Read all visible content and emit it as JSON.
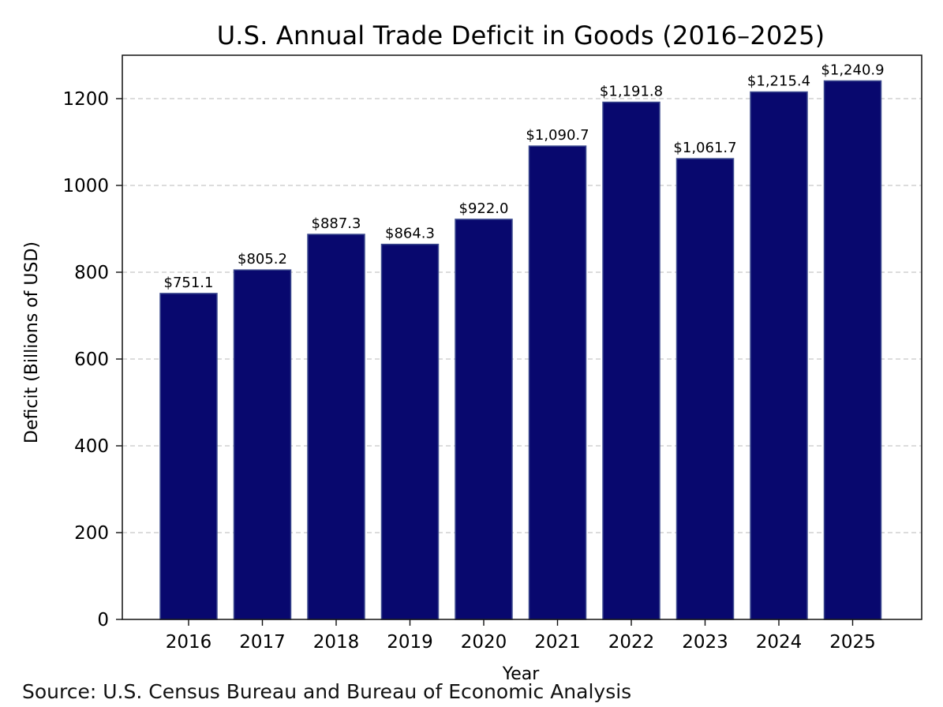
{
  "chart_data": {
    "type": "bar",
    "title": "U.S. Annual Trade Deficit in Goods (2016–2025)",
    "xlabel": "Year",
    "ylabel": "Deficit (Billions of USD)",
    "categories": [
      "2016",
      "2017",
      "2018",
      "2019",
      "2020",
      "2021",
      "2022",
      "2023",
      "2024",
      "2025"
    ],
    "values": [
      751.1,
      805.2,
      887.3,
      864.3,
      922.0,
      1090.7,
      1191.8,
      1061.7,
      1215.4,
      1240.9
    ],
    "data_labels": [
      "$751.1",
      "$805.2",
      "$887.3",
      "$864.3",
      "$922.0",
      "$1,090.7",
      "$1,191.8",
      "$1,061.7",
      "$1,215.4",
      "$1,240.9"
    ],
    "yticks": [
      0,
      200,
      400,
      600,
      800,
      1000,
      1200
    ],
    "ylim": [
      0,
      1300
    ],
    "grid": "horizontal dashed",
    "bar_color": "#08086e",
    "bar_edge_color": "#3d4b8f",
    "grid_color": "#c7c7c7"
  },
  "source": "Source: U.S. Census Bureau and Bureau of Economic Analysis"
}
